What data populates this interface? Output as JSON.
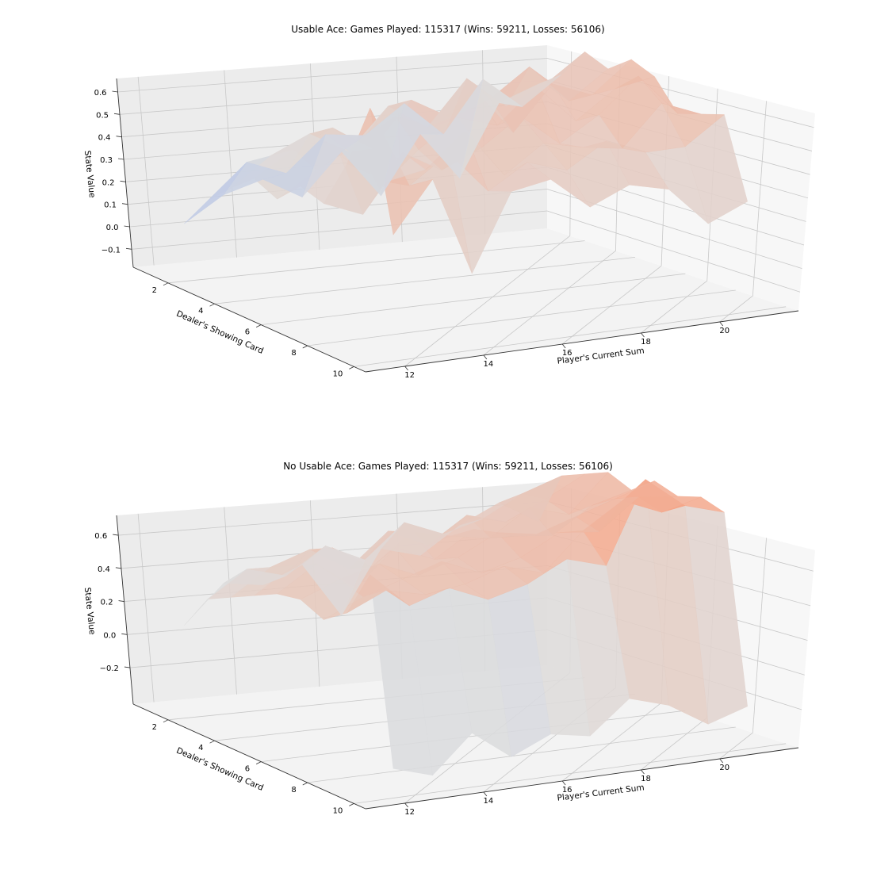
{
  "chart_data": [
    {
      "type": "surface",
      "title": "Usable Ace: Games Played: 115317 (Wins: 59211, Losses: 56106)",
      "xlabel": "Player's Current Sum",
      "ylabel": "Dealer's Showing Card",
      "zlabel": "State Value",
      "x": [
        12,
        13,
        14,
        15,
        16,
        17,
        18,
        19,
        20,
        21
      ],
      "y": [
        1,
        2,
        3,
        4,
        5,
        6,
        7,
        8,
        9,
        10
      ],
      "x_ticks": [
        "12",
        "14",
        "16",
        "18",
        "20"
      ],
      "y_ticks": [
        "2",
        "4",
        "6",
        "8",
        "10"
      ],
      "z_ticks": [
        "−0.1",
        "0.0",
        "0.1",
        "0.2",
        "0.3",
        "0.4",
        "0.5",
        "0.6"
      ],
      "xlim": [
        11,
        22
      ],
      "ylim": [
        0.5,
        10.5
      ],
      "zlim": [
        -0.18,
        0.66
      ],
      "colormap": "coolwarm",
      "grid": true,
      "z": [
        [
          -0.05,
          0.02,
          0.05,
          -0.02,
          0.1,
          -0.05,
          0.12,
          -0.03,
          0.18,
          0.22
        ],
        [
          0.05,
          0.15,
          0.1,
          0.2,
          0.18,
          0.26,
          0.15,
          0.3,
          0.2,
          0.28
        ],
        [
          0.12,
          0.2,
          0.25,
          0.18,
          0.3,
          0.22,
          0.35,
          0.25,
          0.3,
          0.38
        ],
        [
          0.18,
          0.25,
          0.3,
          0.22,
          0.35,
          0.28,
          0.32,
          0.4,
          0.28,
          0.36
        ],
        [
          0.15,
          0.22,
          0.28,
          0.35,
          0.3,
          0.4,
          0.25,
          0.38,
          0.33,
          0.42
        ],
        [
          0.22,
          0.3,
          0.18,
          0.28,
          0.36,
          0.32,
          0.42,
          0.3,
          0.38,
          0.4
        ],
        [
          0.2,
          0.15,
          0.32,
          0.25,
          0.3,
          0.38,
          0.28,
          0.35,
          0.45,
          0.32
        ],
        [
          0.35,
          0.28,
          0.3,
          0.4,
          0.25,
          0.33,
          0.3,
          0.28,
          0.4,
          0.35
        ],
        [
          0.55,
          0.3,
          0.38,
          0.25,
          0.32,
          0.28,
          0.35,
          0.3,
          0.3,
          0.38
        ],
        [
          0.2,
          0.35,
          0.05,
          0.28,
          0.3,
          0.2,
          0.25,
          0.22,
          0.1,
          0.15
        ]
      ]
    },
    {
      "type": "surface",
      "title": "No Usable Ace: Games Played: 115317 (Wins: 59211, Losses: 56106)",
      "xlabel": "Player's Current Sum",
      "ylabel": "Dealer's Showing Card",
      "zlabel": "State Value",
      "x": [
        12,
        13,
        14,
        15,
        16,
        17,
        18,
        19,
        20,
        21
      ],
      "y": [
        1,
        2,
        3,
        4,
        5,
        6,
        7,
        8,
        9,
        10
      ],
      "x_ticks": [
        "12",
        "14",
        "16",
        "18",
        "20"
      ],
      "y_ticks": [
        "2",
        "4",
        "6",
        "8",
        "10"
      ],
      "z_ticks": [
        "−0.2",
        "0.0",
        "0.2",
        "0.4",
        "0.6"
      ],
      "xlim": [
        11,
        22
      ],
      "ylim": [
        0.5,
        10.5
      ],
      "zlim": [
        -0.42,
        0.72
      ],
      "colormap": "coolwarm",
      "grid": true,
      "z": [
        [
          -0.1,
          0.05,
          0.02,
          0.08,
          -0.15,
          0.1,
          0.05,
          0.15,
          0.22,
          0.12
        ],
        [
          0.05,
          0.15,
          0.1,
          0.2,
          0.12,
          0.25,
          0.18,
          0.22,
          0.3,
          0.35
        ],
        [
          0.1,
          0.2,
          0.25,
          0.15,
          0.28,
          0.2,
          0.3,
          0.25,
          0.32,
          0.4
        ],
        [
          0.15,
          0.25,
          0.3,
          0.2,
          0.32,
          0.28,
          0.25,
          0.35,
          0.3,
          0.45
        ],
        [
          0.2,
          0.3,
          0.18,
          0.32,
          0.25,
          0.35,
          0.3,
          0.28,
          0.38,
          0.42
        ],
        [
          0.22,
          0.28,
          0.32,
          0.25,
          0.3,
          0.38,
          0.35,
          0.4,
          0.45,
          0.5
        ],
        [
          0.18,
          0.25,
          0.3,
          0.35,
          0.28,
          0.32,
          0.4,
          0.38,
          0.5,
          0.48
        ],
        [
          0.25,
          0.32,
          0.28,
          0.3,
          0.35,
          0.3,
          0.45,
          0.55,
          0.48,
          0.52
        ],
        [
          0.45,
          0.3,
          0.35,
          0.28,
          0.32,
          0.4,
          0.35,
          0.68,
          0.55,
          0.5
        ],
        [
          -0.3,
          -0.35,
          -0.2,
          -0.32,
          -0.25,
          -0.28,
          -0.15,
          -0.2,
          -0.3,
          -0.25
        ]
      ]
    }
  ]
}
